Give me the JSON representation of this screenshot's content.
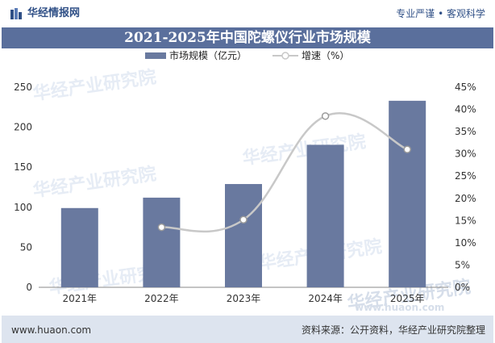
{
  "header": {
    "brand": "华经情报网",
    "tagline": "专业严谨 • 客观科学"
  },
  "chart_data": {
    "type": "bar",
    "title": "2021-2025年中国陀螺仪行业市场规模",
    "categories": [
      "2021年",
      "2022年",
      "2023年",
      "2024年",
      "2025年"
    ],
    "series": [
      {
        "name": "市场规模（亿元）",
        "type": "bar",
        "axis": "left",
        "color": "#69799f",
        "values": [
          99,
          112,
          129,
          178,
          233
        ]
      },
      {
        "name": "增速（%）",
        "type": "line",
        "axis": "right",
        "color": "#c8c8c8",
        "values": [
          null,
          13.5,
          15.2,
          38.5,
          31
        ]
      }
    ],
    "ylim": [
      0,
      250
    ],
    "yticks": [
      "0",
      "50",
      "100",
      "150",
      "200",
      "250"
    ],
    "y2lim": [
      0,
      45
    ],
    "y2ticks": [
      "0%",
      "5%",
      "10%",
      "15%",
      "20%",
      "25%",
      "30%",
      "35%",
      "40%",
      "45%"
    ],
    "grid": false,
    "legend_position": "top-center"
  },
  "watermarks": {
    "text": "华经产业研究院",
    "url": "www.huaon.com"
  },
  "footer": {
    "site": "www.huaon.com",
    "source": "资料来源：公开资料，华经产业研究院整理"
  }
}
